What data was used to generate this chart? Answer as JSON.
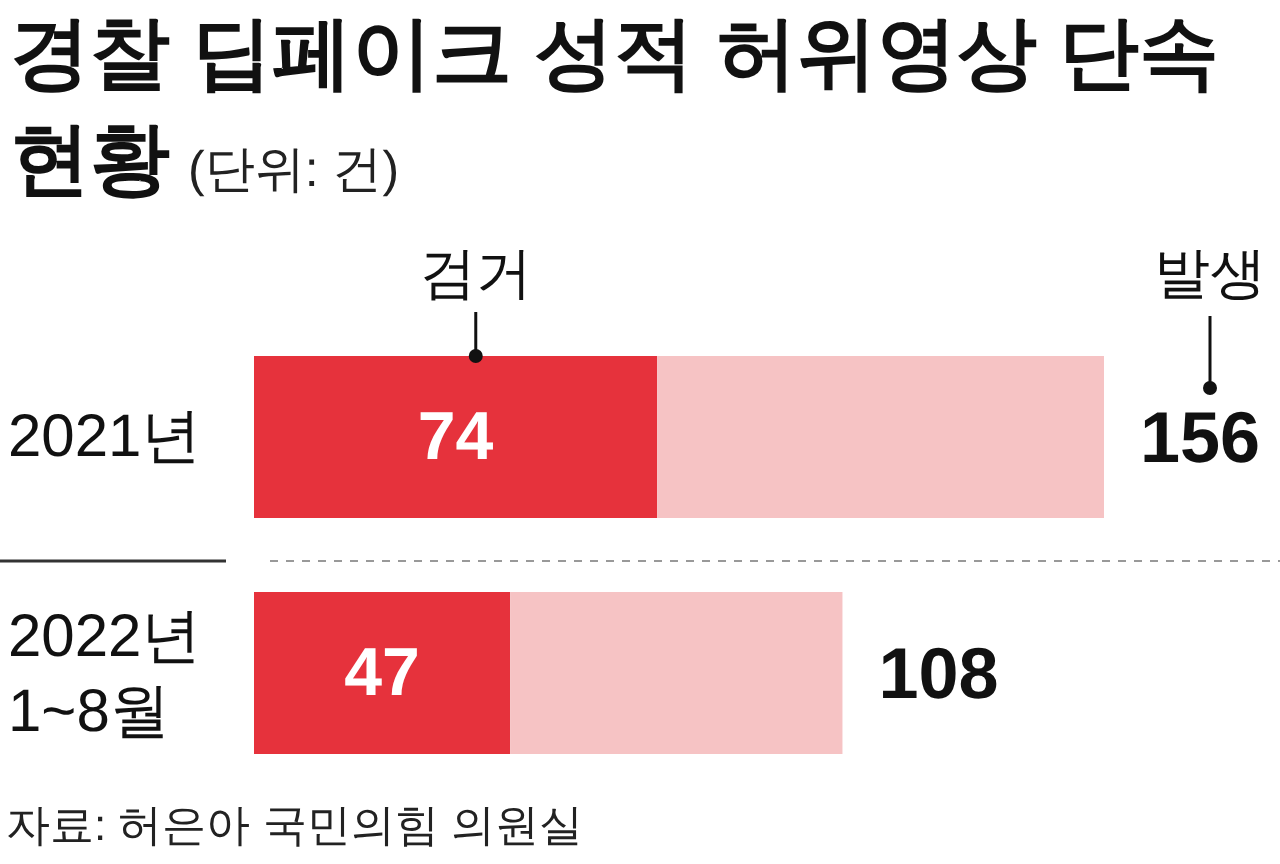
{
  "chart_data": {
    "type": "bar",
    "orientation": "horizontal",
    "stacked": true,
    "title": "경찰 딥페이크 성적 허위영상 단속 현황",
    "subtitle": "(단위: 건)",
    "categories": [
      "2021년",
      "2022년\n1~8월"
    ],
    "series": [
      {
        "name": "검거",
        "color": "#e6323c",
        "values": [
          74,
          47
        ],
        "value_labels": [
          "74",
          "47"
        ]
      },
      {
        "color": "#f6c3c4",
        "values": [
          82,
          61
        ]
      }
    ],
    "totals": [
      "156",
      "108"
    ],
    "annotations": [
      {
        "text": "발생",
        "x": 156,
        "y": "2021년"
      },
      "자료: 허은아 국민의힘 의원실"
    ]
  }
}
